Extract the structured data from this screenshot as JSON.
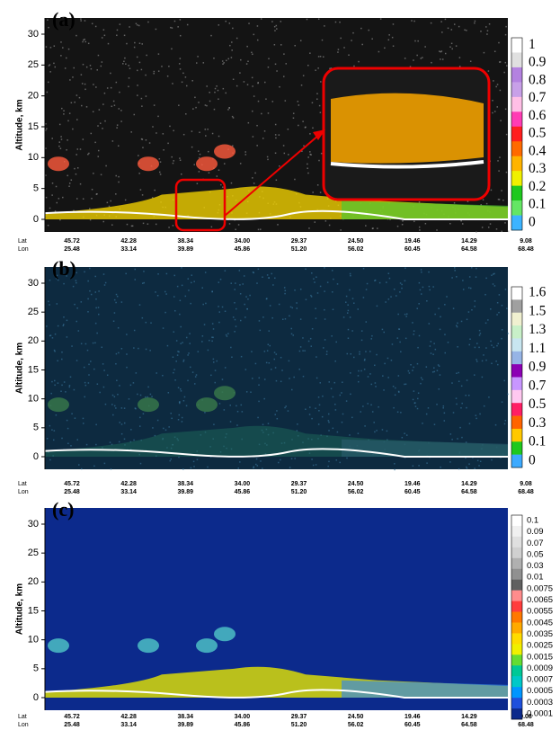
{
  "panels": [
    {
      "label": "(a)",
      "y_axis_label": "Altitude, km",
      "y_ticks": [
        30,
        25,
        20,
        15,
        10,
        5,
        0
      ],
      "lat_label": "Lat",
      "lon_label": "Lon",
      "lat": [
        "45.72",
        "42.28",
        "38.34",
        "34.00",
        "29.37",
        "24.50",
        "19.46",
        "14.29",
        "9.08"
      ],
      "lon": [
        "25.48",
        "33.14",
        "39.89",
        "45.86",
        "51.20",
        "56.02",
        "60.45",
        "64.58",
        "68.48"
      ],
      "colorbar": [
        1,
        0.9,
        0.8,
        0.7,
        0.6,
        0.5,
        0.4,
        0.3,
        0.2,
        0.1,
        0
      ]
    },
    {
      "label": "(b)",
      "y_axis_label": "Altitude, km",
      "y_ticks": [
        30,
        25,
        20,
        15,
        10,
        5,
        0
      ],
      "lat_label": "Lat",
      "lon_label": "Lon",
      "lat": [
        "45.72",
        "42.28",
        "38.34",
        "34.00",
        "29.37",
        "24.50",
        "19.46",
        "14.29",
        "9.08"
      ],
      "lon": [
        "25.48",
        "33.14",
        "39.89",
        "45.86",
        "51.20",
        "56.02",
        "60.45",
        "64.58",
        "68.48"
      ],
      "colorbar": [
        1.6,
        1.5,
        1.3,
        1.1,
        0.9,
        0.7,
        0.5,
        0.3,
        0.1,
        0
      ]
    },
    {
      "label": "(c)",
      "y_axis_label": "Altitude, km",
      "y_ticks": [
        30,
        25,
        20,
        15,
        10,
        5,
        0
      ],
      "lat_label": "Lat",
      "lon_label": "Lon",
      "lat": [
        "45.72",
        "42.28",
        "38.34",
        "34.00",
        "29.37",
        "24.50",
        "19.46",
        "14.29",
        "9.08"
      ],
      "lon": [
        "25.48",
        "33.14",
        "39.89",
        "45.86",
        "51.20",
        "56.02",
        "60.45",
        "64.58",
        "68.48"
      ],
      "colorbar": [
        0.1,
        0.09,
        0.07,
        0.05,
        0.03,
        0.01,
        0.0075,
        0.0065,
        0.0055,
        0.0045,
        0.0035,
        0.0025,
        0.0015,
        0.0009,
        0.0007,
        0.0005,
        0.0003,
        0.0001
      ]
    }
  ]
}
